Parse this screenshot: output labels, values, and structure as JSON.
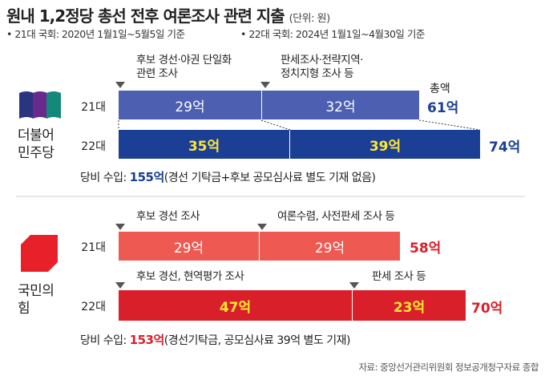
{
  "title": "원내 1,2정당 총선 전후 여론조사 관련 지출",
  "unit": "(단위: 원)",
  "period_21": "• 21대 국회: 2020년 1월1일~5월5일 기준",
  "period_22": "• 22대 국회: 2024년 1월1일~4월30일 기준",
  "source": "자료: 중앙선거관리위원회 정보공개청구자료 종합",
  "colors": {
    "dp_21": "#4d5fb0",
    "dp_22": "#1a3f94",
    "ppp_21": "#ee5a52",
    "ppp_22": "#d9202a",
    "dp_text": "#1a3f94",
    "ppp_text": "#d9202a",
    "bar_label_yellow": "#ffe632"
  },
  "chart_data": {
    "type": "bar",
    "orientation": "horizontal-stacked",
    "parties": [
      {
        "name_line1": "더불어",
        "name_line2": "민주당",
        "rows": [
          {
            "congress": "21대",
            "segments": [
              {
                "value": 29,
                "label": "29억",
                "annotation_line1": "후보 경선·야권 단일화",
                "annotation_line2": "관련 조사"
              },
              {
                "value": 32,
                "label": "32억",
                "annotation_line1": "판세조사·전략지역·",
                "annotation_line2": "정치지형 조사 등"
              }
            ],
            "total_caption": "총액",
            "total": 61,
            "total_label": "61억"
          },
          {
            "congress": "22대",
            "segments": [
              {
                "value": 35,
                "label": "35억"
              },
              {
                "value": 39,
                "label": "39억"
              }
            ],
            "total": 74,
            "total_label": "74억"
          }
        ],
        "income_prefix": "당비 수입: ",
        "income_value": "155억",
        "income_suffix": "(경선 기탁금+후보 공모심사료 별도 기재 없음)"
      },
      {
        "name_line1": "국민의",
        "name_line2": "힘",
        "rows": [
          {
            "congress": "21대",
            "segments": [
              {
                "value": 29,
                "label": "29억",
                "annotation_line1": "후보 경선 조사"
              },
              {
                "value": 29,
                "label": "29억",
                "annotation_line1": "여론수렴, 사전판세 조사 등"
              }
            ],
            "total": 58,
            "total_label": "58억"
          },
          {
            "congress": "22대",
            "segments": [
              {
                "value": 47,
                "label": "47억",
                "annotation_line1": "후보 경선, 현역평가 조사"
              },
              {
                "value": 23,
                "label": "23억",
                "annotation_line1": "판세 조사 등"
              }
            ],
            "total": 70,
            "total_label": "70억"
          }
        ],
        "income_prefix": "당비 수입: ",
        "income_value": "153억",
        "income_suffix": "(경선기탁금, 공모심사료 39억 별도 기재)"
      }
    ]
  }
}
